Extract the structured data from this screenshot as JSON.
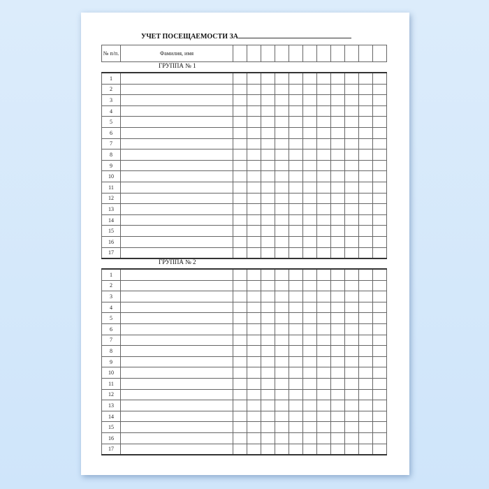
{
  "title": "УЧЕТ ПОСЕЩАЕМОСТИ ЗА",
  "header": {
    "num": "№ п/п.",
    "name": "Фамилия, имя",
    "day_columns": 11
  },
  "groups": [
    {
      "label": "ГРУППА № 1",
      "rows": [
        "1",
        "2",
        "3",
        "4",
        "5",
        "6",
        "7",
        "8",
        "9",
        "10",
        "11",
        "12",
        "13",
        "14",
        "15",
        "16",
        "17"
      ]
    },
    {
      "label": "ГРУППА № 2",
      "rows": [
        "1",
        "2",
        "3",
        "4",
        "5",
        "6",
        "7",
        "8",
        "9",
        "10",
        "11",
        "12",
        "13",
        "14",
        "15",
        "16",
        "17"
      ]
    }
  ]
}
